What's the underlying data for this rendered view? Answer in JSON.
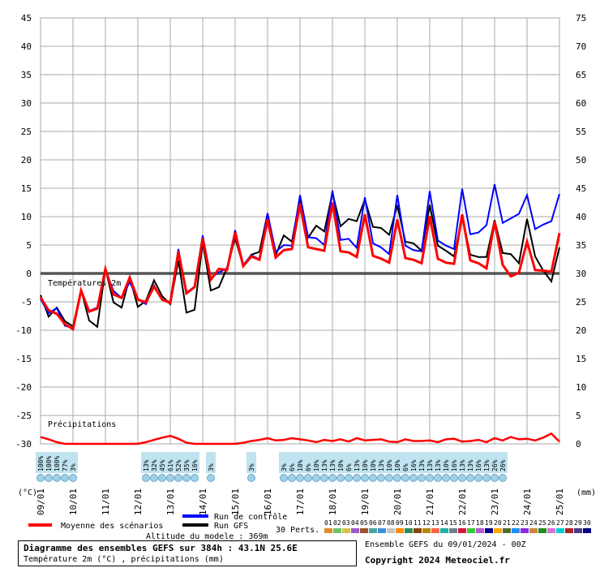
{
  "chart_data": {
    "type": "line",
    "title": "Diagramme des ensembles GEFS sur 384h : 43.1N 25.6E",
    "subtitle": "Température 2m (°C) , précipitations (mm)",
    "ylabel_left": "(°C)",
    "ylabel_right": "(mm)",
    "temp_axis": {
      "min": -30,
      "max": 45,
      "ticks": [
        45,
        40,
        35,
        30,
        25,
        20,
        15,
        10,
        5,
        0,
        -5,
        -10,
        -15,
        -20,
        -25,
        -30
      ]
    },
    "precip_axis": {
      "min": 0,
      "max": 75,
      "ticks": [
        75,
        70,
        65,
        60,
        55,
        50,
        45,
        40,
        35,
        30,
        25,
        20,
        15,
        10,
        5,
        0
      ]
    },
    "x_labels": [
      "09/01",
      "10/01",
      "11/01",
      "12/01",
      "13/01",
      "14/01",
      "15/01",
      "16/01",
      "17/01",
      "18/01",
      "19/01",
      "20/01",
      "21/01",
      "22/01",
      "23/01",
      "24/01",
      "25/01"
    ],
    "annotations": {
      "temp_label": "Températures 2m",
      "precip_label": "Précipitations"
    },
    "mean_temp": [
      -4.2,
      -6.5,
      -7.1,
      -8.9,
      -9.8,
      -3.0,
      -6.7,
      -6.2,
      0.8,
      -3.7,
      -4.3,
      -0.7,
      -4.6,
      -5.1,
      -2.3,
      -4.6,
      -5.2,
      3.9,
      -3.5,
      -2.4,
      6.2,
      -1.1,
      0.8,
      0.6,
      7.2,
      1.3,
      3.0,
      2.4,
      9.5,
      2.8,
      4.1,
      4.3,
      12.2,
      4.6,
      4.3,
      4.0,
      12.5,
      3.9,
      3.7,
      2.9,
      10.4,
      3.1,
      2.6,
      1.9,
      9.5,
      2.7,
      2.4,
      1.8,
      10.1,
      2.6,
      1.9,
      1.7,
      10.4,
      2.3,
      1.8,
      0.9,
      9.2,
      1.5,
      -0.5,
      0.1,
      5.6,
      0.6,
      0.5,
      0.3,
      7.1
    ],
    "control_temp": [
      -4.5,
      -7.0,
      -6.1,
      -9.2,
      -9.6,
      -3.1,
      -6.6,
      -6.0,
      0.7,
      -3.1,
      -4.3,
      -1.5,
      -4.5,
      -5.4,
      -2.1,
      -4.7,
      -5.0,
      4.3,
      -3.4,
      -2.3,
      6.7,
      -0.8,
      0.2,
      0.9,
      7.6,
      1.5,
      3.2,
      2.5,
      10.6,
      3.8,
      5.0,
      4.9,
      13.8,
      6.4,
      6.2,
      5.0,
      14.6,
      5.9,
      6.1,
      4.5,
      13.4,
      5.3,
      4.6,
      3.4,
      13.8,
      4.9,
      4.1,
      3.9,
      14.5,
      5.8,
      4.9,
      4.3,
      14.9,
      6.9,
      7.2,
      8.5,
      15.7,
      8.9,
      9.7,
      10.5,
      13.8,
      7.8,
      8.6,
      9.2,
      14.0
    ],
    "gfs_temp": [
      -3.8,
      -7.6,
      -6.0,
      -8.4,
      -9.3,
      -2.9,
      -8.3,
      -9.4,
      0.8,
      -5.1,
      -6.0,
      -0.7,
      -5.9,
      -4.8,
      -1.2,
      -4.0,
      -5.4,
      2.3,
      -6.9,
      -6.4,
      5.5,
      -3.0,
      -2.4,
      1.0,
      6.2,
      1.3,
      3.3,
      3.8,
      10.6,
      3.2,
      6.7,
      5.6,
      13.3,
      6.3,
      8.4,
      7.4,
      14.2,
      8.3,
      9.6,
      9.2,
      13.0,
      8.2,
      8.0,
      6.8,
      12.0,
      5.6,
      5.3,
      4.0,
      12.1,
      4.9,
      4.0,
      3.0,
      10.0,
      3.3,
      2.9,
      2.9,
      9.4,
      3.6,
      3.4,
      1.8,
      9.6,
      3.0,
      0.5,
      -1.4,
      4.6
    ],
    "mean_precip": [
      1.2,
      0.8,
      0.3,
      0,
      0,
      0,
      0,
      0,
      0,
      0,
      0,
      0,
      0,
      0.3,
      0.7,
      1.1,
      1.4,
      0.9,
      0.2,
      0,
      0,
      0,
      0,
      0,
      0,
      0.2,
      0.5,
      0.7,
      1.0,
      0.6,
      0.7,
      1.0,
      0.8,
      0.6,
      0.3,
      0.7,
      0.5,
      0.8,
      0.4,
      1.0,
      0.6,
      0.7,
      0.8,
      0.4,
      0.3,
      0.8,
      0.5,
      0.5,
      0.6,
      0.3,
      0.8,
      0.9,
      0.4,
      0.5,
      0.7,
      0.3,
      1.0,
      0.6,
      1.2,
      0.8,
      0.9,
      0.6,
      1.1,
      1.8,
      0.4
    ],
    "precip_probability": [
      {
        "label": "100%",
        "x": 0
      },
      {
        "label": "100%",
        "x": 0.25
      },
      {
        "label": "100%",
        "x": 0.5
      },
      {
        "label": "77%",
        "x": 0.75
      },
      {
        "label": "3%",
        "x": 1.0
      },
      {
        "label": "13%",
        "x": 3.25
      },
      {
        "label": "32%",
        "x": 3.5
      },
      {
        "label": "45%",
        "x": 3.75
      },
      {
        "label": "61%",
        "x": 4.0
      },
      {
        "label": "52%",
        "x": 4.25
      },
      {
        "label": "35%",
        "x": 4.5
      },
      {
        "label": "16%",
        "x": 4.75
      },
      {
        "label": "3%",
        "x": 5.25
      },
      {
        "label": "3%",
        "x": 6.5
      },
      {
        "label": "3%",
        "x": 7.5
      },
      {
        "label": "6%",
        "x": 7.75
      },
      {
        "label": "10%",
        "x": 8.0
      },
      {
        "label": "6%",
        "x": 8.25
      },
      {
        "label": "10%",
        "x": 8.5
      },
      {
        "label": "13%",
        "x": 8.75
      },
      {
        "label": "13%",
        "x": 9.0
      },
      {
        "label": "10%",
        "x": 9.25
      },
      {
        "label": "6%",
        "x": 9.5
      },
      {
        "label": "13%",
        "x": 9.75
      },
      {
        "label": "10%",
        "x": 10.0
      },
      {
        "label": "10%",
        "x": 10.25
      },
      {
        "label": "13%",
        "x": 10.5
      },
      {
        "label": "10%",
        "x": 10.75
      },
      {
        "label": "10%",
        "x": 11.0
      },
      {
        "label": "6%",
        "x": 11.25
      },
      {
        "label": "16%",
        "x": 11.5
      },
      {
        "label": "13%",
        "x": 11.75
      },
      {
        "label": "13%",
        "x": 12.0
      },
      {
        "label": "13%",
        "x": 12.25
      },
      {
        "label": "10%",
        "x": 12.5
      },
      {
        "label": "16%",
        "x": 12.75
      },
      {
        "label": "13%",
        "x": 13.0
      },
      {
        "label": "13%",
        "x": 13.25
      },
      {
        "label": "16%",
        "x": 13.5
      },
      {
        "label": "13%",
        "x": 13.75
      },
      {
        "label": "26%",
        "x": 14.0
      },
      {
        "label": "26%",
        "x": 14.25
      }
    ]
  },
  "legend": {
    "mean_label": "Moyenne des scénarios",
    "control_label": "Run de contrôle",
    "gfs_label": "Run GFS",
    "perts_label": "30 Perts.",
    "altitude_label": "Altitude du modele : 369m",
    "mean_color": "#ff0000",
    "control_color": "#0000ff",
    "gfs_color": "#000000",
    "pert_numbers": [
      "01",
      "02",
      "03",
      "04",
      "05",
      "06",
      "07",
      "08",
      "09",
      "10",
      "11",
      "12",
      "13",
      "14",
      "15",
      "16",
      "17",
      "18",
      "19",
      "20",
      "21",
      "22",
      "23",
      "24",
      "25",
      "26",
      "27",
      "28",
      "29",
      "30"
    ],
    "pert_colors": [
      "#e08a2e",
      "#6ac46a",
      "#d8c24a",
      "#9b59d0",
      "#a0522d",
      "#4aa3a3",
      "#3f8fd8",
      "#c4c4c4",
      "#ff8c00",
      "#2e8b57",
      "#8b4513",
      "#b8860b",
      "#ff6347",
      "#20b2aa",
      "#708090",
      "#dc143c",
      "#32cd32",
      "#ba55d3",
      "#00008b",
      "#ffa500",
      "#556b2f",
      "#1e90ff",
      "#8a2be2",
      "#cd853f",
      "#228b22",
      "#da70d6",
      "#00ced1",
      "#b22222",
      "#483d8b",
      "#000080"
    ]
  },
  "footer": {
    "ensemble_label": "Ensemble GEFS du 09/01/2024 - 00Z",
    "copyright": "Copyright 2024 Meteociel.fr"
  }
}
